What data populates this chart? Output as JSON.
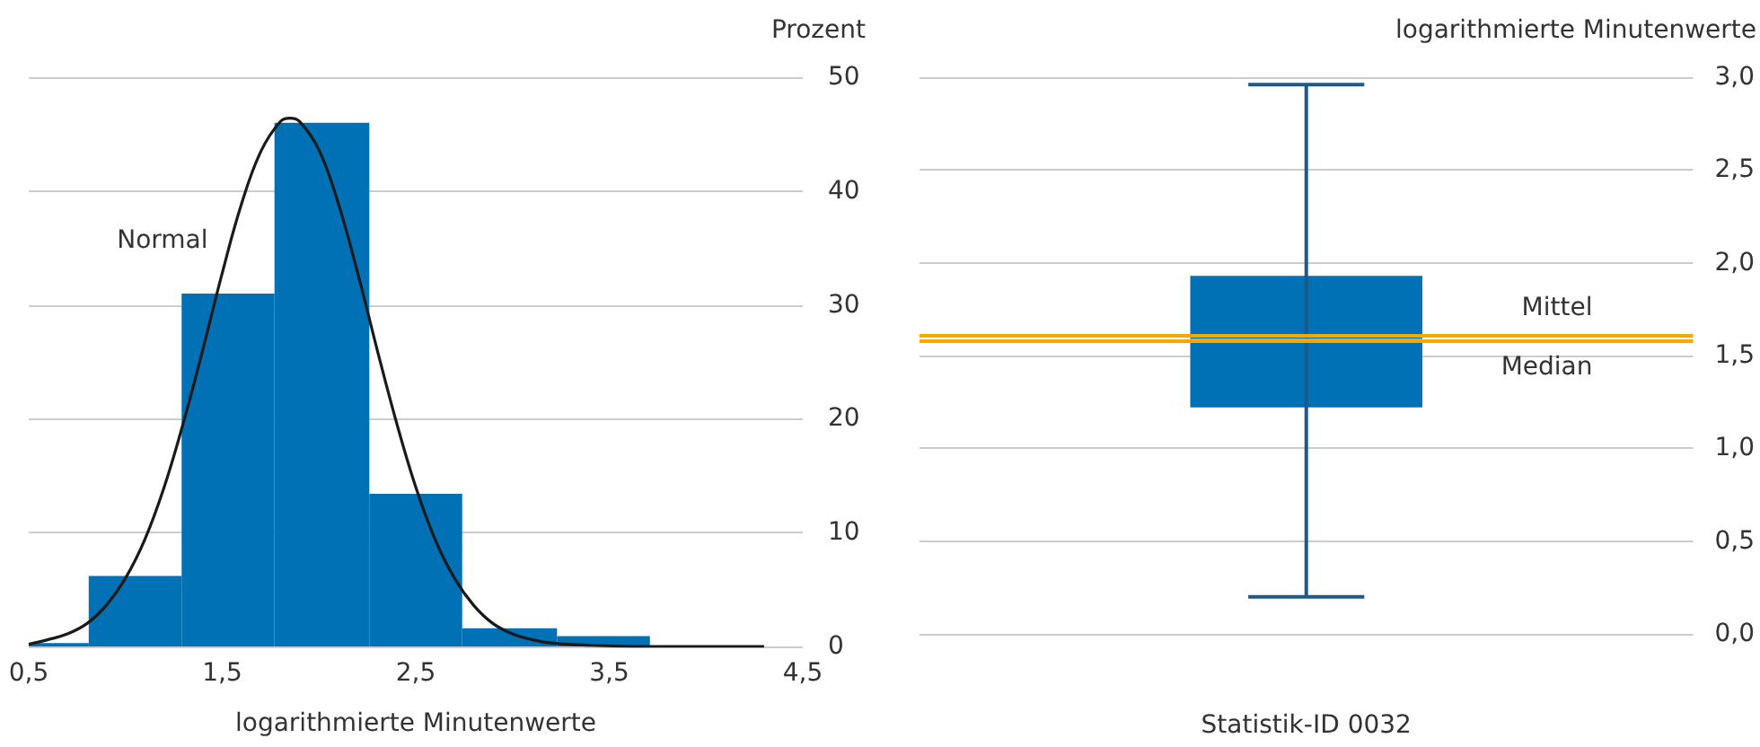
{
  "chart_data": [
    {
      "type": "histogram",
      "xlabel": "logarithmierte Minutenwerte",
      "ylabel": "Prozent",
      "xlim": [
        0.5,
        4.5
      ],
      "xticks": [
        {
          "value": 0.5,
          "label": "0,5"
        },
        {
          "value": 1.5,
          "label": "1,5"
        },
        {
          "value": 2.5,
          "label": "2,5"
        },
        {
          "value": 3.5,
          "label": "3,5"
        },
        {
          "value": 4.5,
          "label": "4,5"
        }
      ],
      "ylim": [
        0,
        50
      ],
      "yticks": [
        0,
        10,
        20,
        30,
        40,
        50
      ],
      "grid": "y",
      "series": [
        {
          "type": "histogram",
          "color": "#0071b4",
          "bins": [
            0.5,
            0.81,
            1.29,
            1.77,
            2.26,
            2.74,
            3.23,
            3.71
          ],
          "values": [
            0.3,
            6.2,
            31,
            46,
            13.4,
            1.6,
            0.9
          ]
        },
        {
          "type": "line",
          "color": "#1a1a1a",
          "x": [
            0.5,
            0.6,
            0.7,
            0.8,
            0.9,
            1.0,
            1.1,
            1.2,
            1.3,
            1.4,
            1.5,
            1.6,
            1.7,
            1.8,
            1.85,
            1.9,
            2.0,
            2.1,
            2.2,
            2.3,
            2.4,
            2.5,
            2.6,
            2.7,
            2.8,
            2.9,
            3.0,
            3.1,
            3.2,
            3.4,
            3.7,
            4.3
          ],
          "values": [
            0.2,
            0.6,
            1.1,
            2.0,
            3.6,
            6.0,
            9.4,
            14,
            19.7,
            26.1,
            32.8,
            38.9,
            43.5,
            46.1,
            46.4,
            46.1,
            43.6,
            38.9,
            32.8,
            26.1,
            19.7,
            14.0,
            9.4,
            6.0,
            3.6,
            2.0,
            1.1,
            0.6,
            0.3,
            0.1,
            0,
            0
          ]
        }
      ],
      "annotations": [
        {
          "text": "Normal",
          "x": 1.5,
          "y": 32.8
        }
      ]
    },
    {
      "type": "box",
      "categories": [
        null
      ],
      "xlabel": "Statistik-ID 0032",
      "ylabel": "logarithmierte Minutenwerte",
      "ylim": [
        0,
        3
      ],
      "yticks": [
        {
          "value": 0,
          "label": "0,0"
        },
        {
          "value": 0.5,
          "label": "0,5"
        },
        {
          "value": 1,
          "label": "1,0"
        },
        {
          "value": 1.5,
          "label": "1,5"
        },
        {
          "value": 2,
          "label": "2,0"
        },
        {
          "value": 2.5,
          "label": "2,5"
        },
        {
          "value": 3,
          "label": "3,0"
        }
      ],
      "grid": "y",
      "color": "#0071b4",
      "boxes": [
        {
          "low": 0.2,
          "q1": 1.22,
          "median": 1.58,
          "q3": 1.93,
          "high": 2.96
        }
      ],
      "ref_lines": [
        {
          "axis": "y",
          "value": 1.61,
          "label": "Mittel",
          "color": "#f6a800"
        },
        {
          "axis": "y",
          "value": 1.58,
          "label": "Median",
          "color": "#f6a800"
        }
      ]
    }
  ]
}
